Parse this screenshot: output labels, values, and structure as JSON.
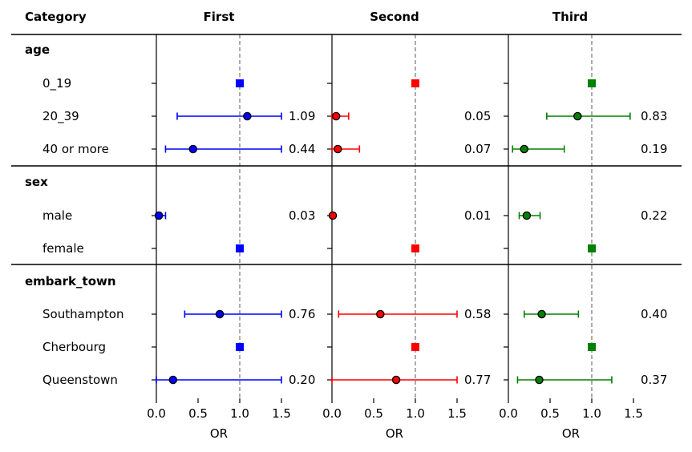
{
  "chart_data": {
    "type": "forest",
    "header": {
      "category_label": "Category",
      "panel_titles": [
        "First",
        "Second",
        "Third"
      ]
    },
    "xlabel": "OR",
    "xlim": [
      0.0,
      1.5
    ],
    "xticks": [
      "0.0",
      "0.5",
      "1.0",
      "1.5"
    ],
    "reference_line": 1.0,
    "groups": [
      {
        "name": "age",
        "rows": [
          "0_19",
          "20_39",
          "40 or more"
        ]
      },
      {
        "name": "sex",
        "rows": [
          "male",
          "female"
        ]
      },
      {
        "name": "embark_town",
        "rows": [
          "Southampton",
          "Cherbourg",
          "Queenstown"
        ]
      }
    ],
    "series": [
      {
        "name": "First",
        "color": "#0000ff",
        "points": [
          {
            "row": "0_19",
            "reference": true
          },
          {
            "row": "20_39",
            "or": 1.09,
            "lo": 0.25,
            "hi": 1.5,
            "label": "1.09"
          },
          {
            "row": "40 or more",
            "or": 0.44,
            "lo": 0.11,
            "hi": 1.5,
            "label": "0.44"
          },
          {
            "row": "male",
            "or": 0.03,
            "lo": 0.0,
            "hi": 0.11,
            "label": "0.03"
          },
          {
            "row": "female",
            "reference": true
          },
          {
            "row": "Southampton",
            "or": 0.76,
            "lo": 0.34,
            "hi": 1.5,
            "label": "0.76"
          },
          {
            "row": "Cherbourg",
            "reference": true
          },
          {
            "row": "Queenstown",
            "or": 0.2,
            "lo": 0.0,
            "hi": 1.5,
            "label": "0.20"
          }
        ]
      },
      {
        "name": "Second",
        "color": "#ff0000",
        "points": [
          {
            "row": "0_19",
            "reference": true
          },
          {
            "row": "20_39",
            "or": 0.05,
            "lo": 0.0,
            "hi": 0.2,
            "label": "0.05"
          },
          {
            "row": "40 or more",
            "or": 0.07,
            "lo": 0.0,
            "hi": 0.33,
            "label": "0.07"
          },
          {
            "row": "male",
            "or": 0.01,
            "lo": 0.0,
            "hi": 0.01,
            "label": "0.01"
          },
          {
            "row": "female",
            "reference": true
          },
          {
            "row": "Southampton",
            "or": 0.58,
            "lo": 0.08,
            "hi": 1.5,
            "label": "0.58"
          },
          {
            "row": "Cherbourg",
            "reference": true
          },
          {
            "row": "Queenstown",
            "or": 0.77,
            "lo": 0.0,
            "hi": 1.5,
            "label": "0.77"
          }
        ]
      },
      {
        "name": "Third",
        "color": "#008000",
        "points": [
          {
            "row": "0_19",
            "reference": true
          },
          {
            "row": "20_39",
            "or": 0.83,
            "lo": 0.46,
            "hi": 1.46,
            "label": "0.83"
          },
          {
            "row": "40 or more",
            "or": 0.19,
            "lo": 0.05,
            "hi": 0.67,
            "label": "0.19"
          },
          {
            "row": "male",
            "or": 0.22,
            "lo": 0.13,
            "hi": 0.38,
            "label": "0.22"
          },
          {
            "row": "female",
            "reference": true
          },
          {
            "row": "Southampton",
            "or": 0.4,
            "lo": 0.19,
            "hi": 0.84,
            "label": "0.40"
          },
          {
            "row": "Cherbourg",
            "reference": true
          },
          {
            "row": "Queenstown",
            "or": 0.37,
            "lo": 0.11,
            "hi": 1.24,
            "label": "0.37"
          }
        ]
      }
    ]
  }
}
